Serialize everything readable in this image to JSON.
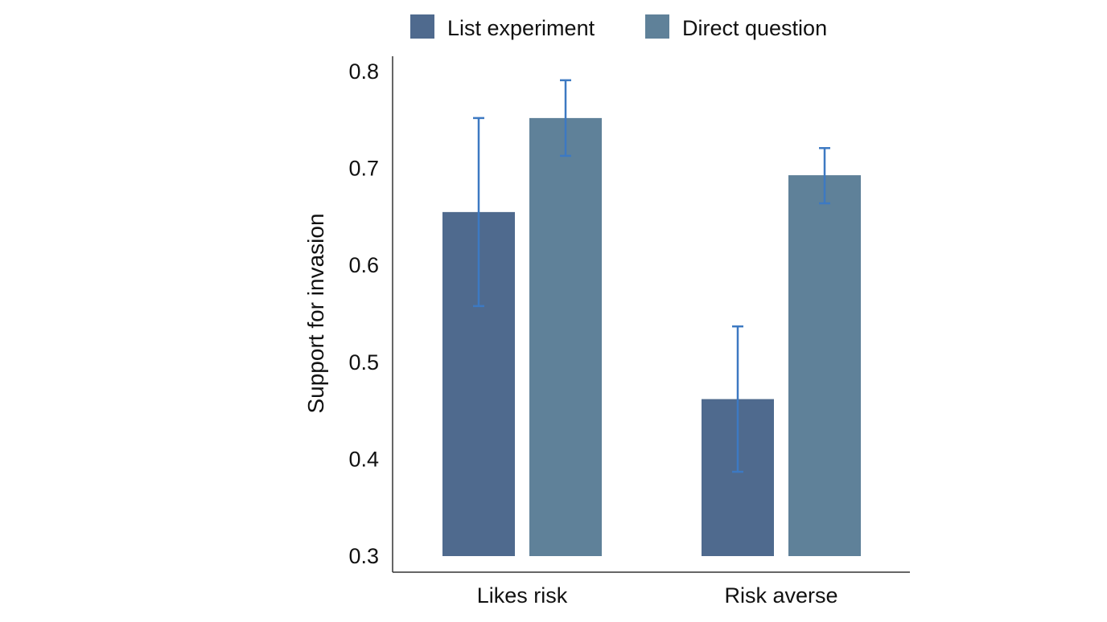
{
  "chart_data": {
    "type": "bar",
    "title": "",
    "xlabel": "",
    "ylabel": "Support for invasion",
    "ylim": [
      0.3,
      0.8
    ],
    "yticks": [
      "0.3",
      "0.4",
      "0.5",
      "0.6",
      "0.7",
      "0.8"
    ],
    "categories": [
      "Likes risk",
      "Risk averse"
    ],
    "series": [
      {
        "name": "List experiment",
        "color": "#4f6a8e",
        "values": [
          0.655,
          0.462
        ],
        "ci_low": [
          0.558,
          0.387
        ],
        "ci_high": [
          0.752,
          0.537
        ]
      },
      {
        "name": "Direct question",
        "color": "#5f8199",
        "values": [
          0.752,
          0.693
        ],
        "ci_low": [
          0.713,
          0.664
        ],
        "ci_high": [
          0.791,
          0.721
        ]
      }
    ],
    "error_bar_color": "#3d79c2",
    "grid": false,
    "legend_position": "top"
  }
}
